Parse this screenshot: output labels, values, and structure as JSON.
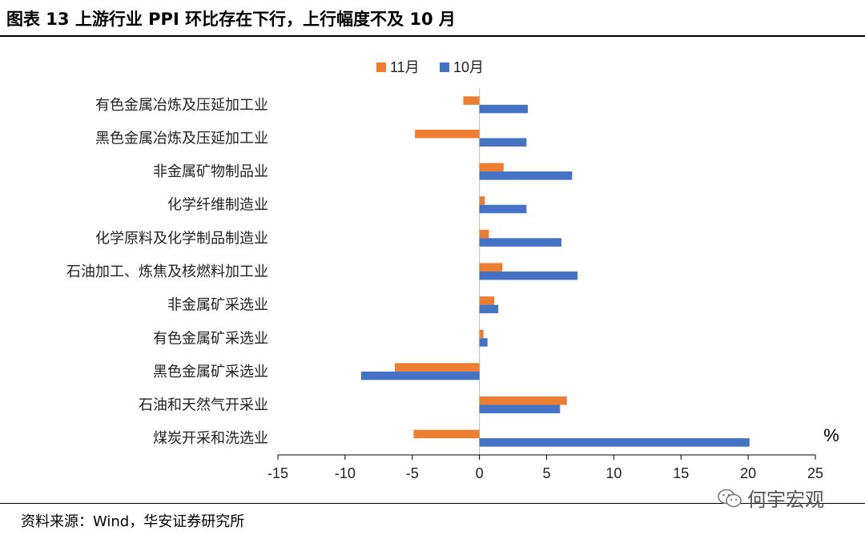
{
  "title": "图表 13 上游行业 PPI 环比存在下行，上行幅度不及 10 月",
  "source": "资料来源：Wind，华安证券研究所",
  "watermark": "何宇宏观",
  "chart_data": {
    "type": "bar",
    "orientation": "horizontal",
    "categories": [
      "有色金属冶炼及压延加工业",
      "黑色金属冶炼及压延加工业",
      "非金属矿物制品业",
      "化学纤维制造业",
      "化学原料及化学制品制造业",
      "石油加工、炼焦及核燃料加工业",
      "非金属矿采选业",
      "有色金属矿采选业",
      "黑色金属矿采选业",
      "石油和天然气开采业",
      "煤炭开采和洗选业"
    ],
    "series": [
      {
        "name": "11月",
        "color": "#ED7D31",
        "values": [
          -1.2,
          -4.8,
          1.8,
          0.4,
          0.7,
          1.7,
          1.1,
          0.3,
          -6.3,
          6.5,
          -4.9
        ]
      },
      {
        "name": "10月",
        "color": "#4472C4",
        "values": [
          3.6,
          3.5,
          6.9,
          3.5,
          6.1,
          7.3,
          1.4,
          0.6,
          -8.8,
          6.0,
          20.1
        ]
      }
    ],
    "xlim": [
      -15,
      25
    ],
    "xticks": [
      "-15",
      "-10",
      "-5",
      "0",
      "5",
      "10",
      "15",
      "20",
      "25"
    ],
    "unit": "%",
    "legend": "top-center"
  }
}
